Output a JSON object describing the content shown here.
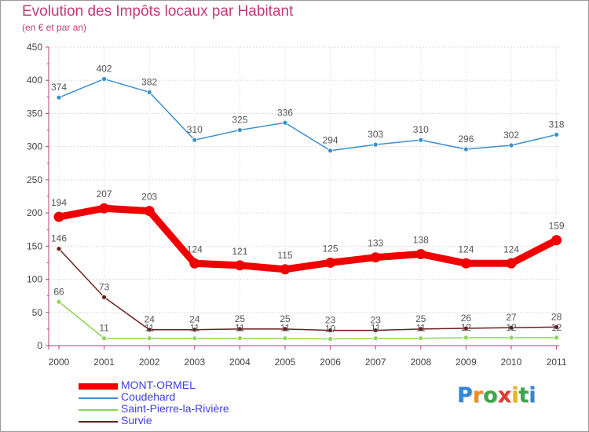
{
  "title": "Evolution des Impôts locaux par Habitant",
  "subtitle": "(en € et par an)",
  "logo_letters": [
    {
      "ch": "P",
      "color": "#2f86d8"
    },
    {
      "ch": "r",
      "color": "#f28c1c"
    },
    {
      "ch": "o",
      "color": "#3aa84a"
    },
    {
      "ch": "x",
      "color": "#e23a2c"
    },
    {
      "ch": "i",
      "color": "#f2b31c"
    },
    {
      "ch": "t",
      "color": "#3aa84a"
    },
    {
      "ch": "i",
      "color": "#2f86d8"
    }
  ],
  "chart_data": {
    "type": "line",
    "title": "Evolution des Impôts locaux par Habitant",
    "subtitle": "(en € et par an)",
    "xlabel": "",
    "ylabel": "",
    "x": [
      "2000",
      "2001",
      "2002",
      "2003",
      "2004",
      "2005",
      "2006",
      "2007",
      "2008",
      "2009",
      "2010",
      "2011"
    ],
    "ylim": [
      0,
      450
    ],
    "yticks": [
      "0",
      "50",
      "100",
      "150",
      "200",
      "250",
      "300",
      "350",
      "400",
      "450"
    ],
    "grid": true,
    "legend_position": "bottom-left",
    "series": [
      {
        "name": "Coudehard",
        "color": "#3a8fcf",
        "values": [
          374,
          402,
          382,
          310,
          325,
          336,
          294,
          303,
          310,
          296,
          302,
          318
        ],
        "labels": [
          "374",
          "402",
          "382",
          "310",
          "325",
          "336",
          "294",
          "303",
          "310",
          "296",
          "302",
          "318"
        ]
      },
      {
        "name": "MONT-ORMEL",
        "color": "#f00000",
        "values": [
          194,
          207,
          203,
          124,
          121,
          115,
          125,
          133,
          138,
          124,
          124,
          159
        ],
        "labels": [
          "194",
          "207",
          "203",
          "124",
          "121",
          "115",
          "125",
          "133",
          "138",
          "124",
          "124",
          "159"
        ]
      },
      {
        "name": "Survie",
        "color": "#6b1f1f",
        "values": [
          146,
          73,
          24,
          24,
          25,
          25,
          23,
          23,
          25,
          26,
          27,
          28
        ],
        "labels": [
          "146",
          "73",
          "24",
          "24",
          "25",
          "25",
          "23",
          "23",
          "25",
          "26",
          "27",
          "28"
        ]
      },
      {
        "name": "Saint-Pierre-la-Rivière",
        "color": "#8fd45a",
        "values": [
          66,
          11,
          11,
          11,
          11,
          11,
          10,
          11,
          11,
          12,
          12,
          12
        ],
        "labels": [
          "66",
          "11",
          "11",
          "11",
          "11",
          "11",
          "10",
          "11",
          "11",
          "12",
          "12",
          "12"
        ]
      }
    ],
    "legend": [
      "MONT-ORMEL",
      "Coudehard",
      "Saint-Pierre-la-Rivière",
      "Survie"
    ]
  }
}
